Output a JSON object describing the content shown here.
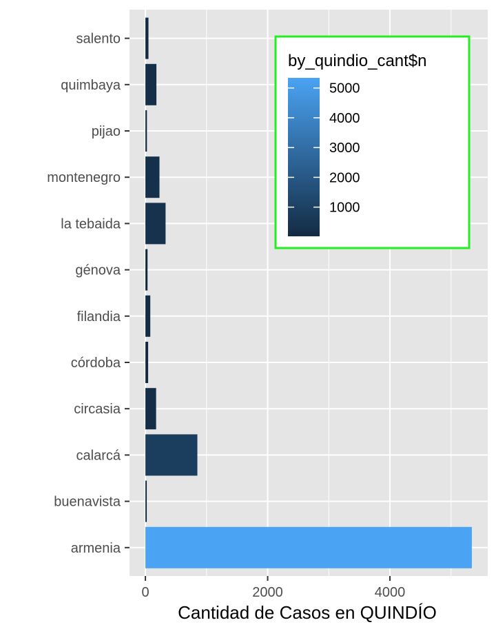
{
  "chart_data": {
    "type": "bar",
    "orientation": "horizontal",
    "categories": [
      "salento",
      "quimbaya",
      "pijao",
      "montenegro",
      "la tebaida",
      "génova",
      "filandia",
      "córdoba",
      "circasia",
      "calarcá",
      "buenavista",
      "armenia"
    ],
    "values": [
      50,
      180,
      25,
      230,
      330,
      35,
      80,
      45,
      175,
      850,
      20,
      5340
    ],
    "xlabel": "Cantidad de Casos en QUINDÍO",
    "ylabel": "",
    "xlim": [
      -260,
      5600
    ],
    "x_ticks": [
      0,
      2000,
      4000
    ],
    "grid": true,
    "legend": {
      "title": "by_quindio_cant$n",
      "ticks": [
        5000,
        4000,
        3000,
        2000,
        1000
      ],
      "low_color": "#132B43",
      "high_color": "#4AA3F3",
      "range": [
        20,
        5340
      ],
      "placement": "top-right",
      "border_color": "#22EE22"
    },
    "panel_background": "#E5E5E5",
    "grid_color": "#FFFFFF"
  }
}
